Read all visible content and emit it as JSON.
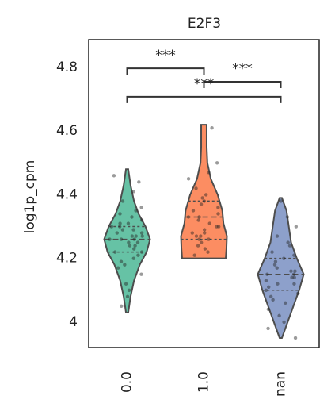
{
  "chart_data": {
    "type": "violin",
    "title": "E2F3",
    "y_label": "log1p_cpm",
    "categories": [
      "0.0",
      "1.0",
      "nan"
    ],
    "ylim": [
      3.92,
      4.887
    ],
    "yticks": [
      4.0,
      4.2,
      4.4,
      4.6,
      4.8
    ],
    "series": [
      {
        "color": "#66c2a5",
        "q1": 4.22,
        "median": 4.26,
        "q3": 4.3,
        "density_y": [
          4.03,
          4.08,
          4.13,
          4.18,
          4.22,
          4.26,
          4.3,
          4.34,
          4.38,
          4.43,
          4.48
        ],
        "density_w": [
          0.05,
          0.15,
          0.3,
          0.55,
          0.85,
          1.0,
          0.8,
          0.5,
          0.3,
          0.15,
          0.05
        ],
        "values": [
          4.26,
          4.22,
          4.3,
          4.28,
          4.24,
          4.31,
          4.19,
          4.35,
          4.27,
          4.25,
          4.29,
          4.33,
          4.21,
          4.17,
          4.38,
          4.26,
          4.23,
          4.3,
          4.41,
          4.12,
          4.28,
          4.25,
          4.46,
          4.08,
          4.32,
          4.2,
          4.27,
          4.24,
          4.36,
          4.15,
          4.29,
          4.05,
          4.44,
          4.26,
          4.22,
          4.31,
          4.18,
          4.34,
          4.27,
          4.1
        ]
      },
      {
        "color": "#fc8d62",
        "q1": 4.26,
        "median": 4.33,
        "q3": 4.38,
        "density_y": [
          4.2,
          4.23,
          4.27,
          4.31,
          4.35,
          4.4,
          4.45,
          4.5,
          4.55,
          4.62
        ],
        "density_w": [
          0.95,
          0.98,
          1.0,
          0.85,
          0.8,
          0.6,
          0.3,
          0.15,
          0.12,
          0.12
        ],
        "values": [
          4.61,
          4.5,
          4.45,
          4.42,
          4.4,
          4.38,
          4.37,
          4.35,
          4.34,
          4.33,
          4.33,
          4.32,
          4.31,
          4.3,
          4.29,
          4.28,
          4.27,
          4.27,
          4.26,
          4.25,
          4.24,
          4.23,
          4.22,
          4.21,
          4.36,
          4.39,
          4.3,
          4.47,
          4.26,
          4.28
        ]
      },
      {
        "color": "#8da0cb",
        "q1": 4.1,
        "median": 4.15,
        "q3": 4.2,
        "density_y": [
          3.95,
          4.0,
          4.05,
          4.1,
          4.15,
          4.2,
          4.25,
          4.3,
          4.35,
          4.39
        ],
        "density_w": [
          0.05,
          0.3,
          0.55,
          0.8,
          1.0,
          0.7,
          0.45,
          0.35,
          0.25,
          0.05
        ],
        "values": [
          4.38,
          4.33,
          4.3,
          4.27,
          4.25,
          4.22,
          4.2,
          4.19,
          4.18,
          4.17,
          4.16,
          4.15,
          4.15,
          4.14,
          4.13,
          4.12,
          4.11,
          4.1,
          4.09,
          4.08,
          4.06,
          4.04,
          4.02,
          4.0,
          3.98,
          3.95,
          4.21,
          4.14,
          4.12,
          4.16,
          4.24,
          4.07
        ]
      }
    ],
    "annotations": [
      {
        "text": "***",
        "from": 0,
        "to": 1,
        "y": 4.797
      },
      {
        "text": "***",
        "from": 1,
        "to": 2,
        "y": 4.755
      },
      {
        "text": "***",
        "from": 0,
        "to": 2,
        "y": 4.708
      }
    ]
  }
}
